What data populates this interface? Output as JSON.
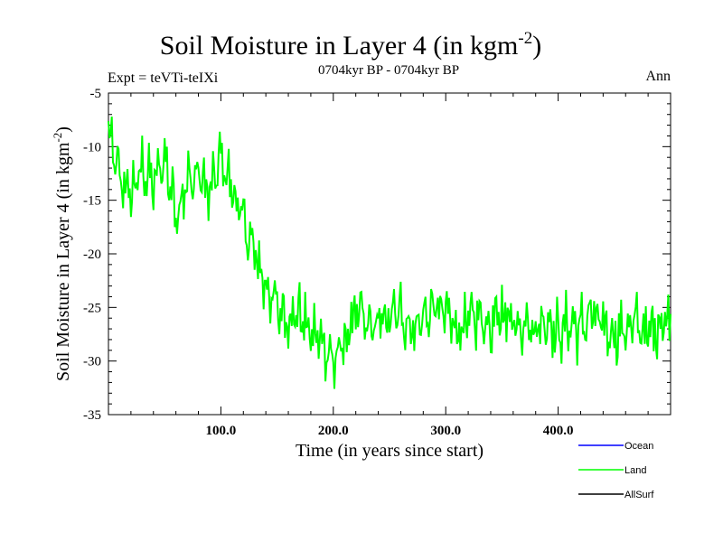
{
  "chart_data": {
    "type": "line",
    "title": "Soil Moisture in Layer 4 (in kgm",
    "title_sup": "-2",
    "title_close": ")",
    "subtitle": "0704kyr BP - 0704kyr BP",
    "expt_label": "Expt = teVTi-teIXi",
    "season_label": "Ann",
    "xlabel": "Time (in years since start)",
    "ylabel": "Soil Moisture in Layer 4 (in kgm",
    "ylabel_sup": "-2",
    "ylabel_close": ")",
    "xlim": [
      0,
      500
    ],
    "ylim": [
      -35,
      -5
    ],
    "x_ticks": [
      100,
      200,
      300,
      400
    ],
    "x_tick_labels": [
      "100.0",
      "200.0",
      "300.0",
      "400.0"
    ],
    "y_ticks": [
      -35,
      -30,
      -25,
      -20,
      -15,
      -10,
      -5
    ],
    "y_tick_labels": [
      "-35",
      "-30",
      "-25",
      "-20",
      "-15",
      "-10",
      "-5"
    ],
    "legend": [
      {
        "name": "Ocean",
        "color": "#0000ff"
      },
      {
        "name": "Land",
        "color": "#00ff00"
      },
      {
        "name": "AllSurf",
        "color": "#000000"
      }
    ],
    "series": [
      {
        "name": "Land",
        "color": "#00ff00",
        "x": [
          0,
          10,
          20,
          30,
          40,
          50,
          60,
          70,
          80,
          90,
          100,
          110,
          120,
          130,
          140,
          150,
          160,
          170,
          180,
          190,
          200,
          210,
          220,
          230,
          240,
          250,
          260,
          270,
          280,
          290,
          300,
          310,
          320,
          330,
          340,
          350,
          360,
          370,
          380,
          390,
          400,
          410,
          420,
          430,
          440,
          450,
          460,
          470,
          480,
          490,
          500
        ],
        "values": [
          -9,
          -13,
          -14.5,
          -12,
          -13.5,
          -11,
          -16,
          -13.5,
          -12.5,
          -14.5,
          -11,
          -14,
          -17,
          -20,
          -23,
          -25,
          -26,
          -25.5,
          -27.5,
          -28,
          -30,
          -28.5,
          -25,
          -27,
          -26.5,
          -26,
          -25.5,
          -27,
          -26,
          -25,
          -25.5,
          -27,
          -26.5,
          -26,
          -27,
          -25.5,
          -26,
          -26.5,
          -27,
          -26,
          -27.5,
          -26.5,
          -27,
          -25.5,
          -27,
          -27.5,
          -27,
          -26.5,
          -27.5,
          -26.5,
          -26
        ]
      }
    ]
  }
}
